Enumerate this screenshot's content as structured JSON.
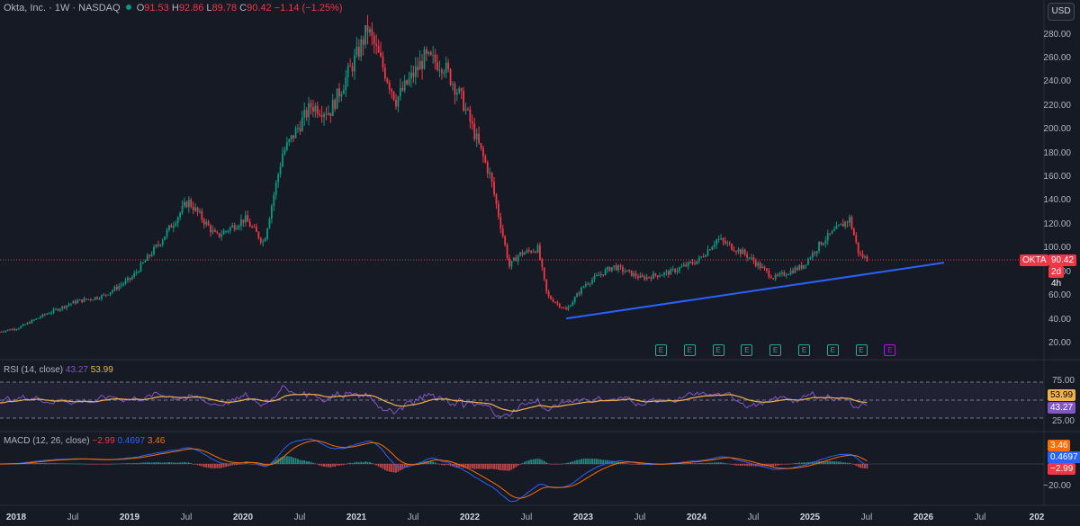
{
  "header": {
    "symbol": "Okta, Inc. · 1W · NASDAQ",
    "o_key": "O",
    "o_val": "91.53",
    "h_key": "H",
    "h_val": "92.86",
    "l_key": "L",
    "l_val": "89.78",
    "c_key": "C",
    "c_val": "90.42",
    "change": "−1.14 (−1.25%)",
    "currency": "USD"
  },
  "price_axis": {
    "labels": [
      "280.00",
      "260.00",
      "240.00",
      "220.00",
      "200.00",
      "180.00",
      "160.00",
      "140.00",
      "120.00",
      "100.00",
      "80.00",
      "60.00",
      "40.00",
      "20.00"
    ],
    "values": [
      280,
      260,
      240,
      220,
      200,
      180,
      160,
      140,
      120,
      100,
      80,
      60,
      40,
      20
    ]
  },
  "last_price": {
    "ticker": "OKTA",
    "price": "90.42",
    "countdown": "2d 4h",
    "value": 90.42
  },
  "rsi": {
    "title": "RSI (14, close)",
    "val1": "43.27",
    "val2": "53.99",
    "levels": [
      "75.00",
      "50.00",
      "25.00"
    ]
  },
  "macd": {
    "title": "MACD (12, 26, close)",
    "hist": "−2.99",
    "macd": "0.4697",
    "signal": "3.46",
    "levels": [
      "0.00",
      "−20.00"
    ]
  },
  "time_axis": [
    {
      "t": "2018",
      "bold": true
    },
    {
      "t": "Jul"
    },
    {
      "t": "2019",
      "bold": true
    },
    {
      "t": "Jul"
    },
    {
      "t": "2020",
      "bold": true
    },
    {
      "t": "Jul"
    },
    {
      "t": "2021",
      "bold": true
    },
    {
      "t": "Jul"
    },
    {
      "t": "2022",
      "bold": true
    },
    {
      "t": "Jul"
    },
    {
      "t": "2023",
      "bold": true
    },
    {
      "t": "Jul"
    },
    {
      "t": "2024",
      "bold": true
    },
    {
      "t": "Jul"
    },
    {
      "t": "2025",
      "bold": true
    },
    {
      "t": "Jul"
    },
    {
      "t": "2026",
      "bold": true
    },
    {
      "t": "Jul"
    },
    {
      "t": "202",
      "bold": true
    }
  ],
  "earnings_marker": "E",
  "earnings_count": 9,
  "colors": {
    "up": "#089981",
    "down": "#f23645",
    "trendline": "#2962ff",
    "rsi": "#7e57c2",
    "rsi_ma": "#f0b34a",
    "macd": "#2962ff",
    "signal": "#ff6d00"
  },
  "chart_data": {
    "type": "candlestick",
    "timeframe": "1W",
    "ylim": [
      20,
      290
    ],
    "close_path": [
      {
        "date": "2017-11",
        "close": 30
      },
      {
        "date": "2018-01",
        "close": 33
      },
      {
        "date": "2018-04",
        "close": 45
      },
      {
        "date": "2018-07",
        "close": 55
      },
      {
        "date": "2018-10",
        "close": 60
      },
      {
        "date": "2019-01",
        "close": 75
      },
      {
        "date": "2019-04",
        "close": 105
      },
      {
        "date": "2019-07",
        "close": 140
      },
      {
        "date": "2019-10",
        "close": 110
      },
      {
        "date": "2020-01",
        "close": 125
      },
      {
        "date": "2020-03",
        "close": 105
      },
      {
        "date": "2020-05",
        "close": 180
      },
      {
        "date": "2020-08",
        "close": 220
      },
      {
        "date": "2020-10",
        "close": 215
      },
      {
        "date": "2021-01",
        "close": 265
      },
      {
        "date": "2021-02",
        "close": 285
      },
      {
        "date": "2021-05",
        "close": 225
      },
      {
        "date": "2021-08",
        "close": 260
      },
      {
        "date": "2021-10",
        "close": 255
      },
      {
        "date": "2021-12",
        "close": 225
      },
      {
        "date": "2022-03",
        "close": 160
      },
      {
        "date": "2022-05",
        "close": 85
      },
      {
        "date": "2022-06",
        "close": 95
      },
      {
        "date": "2022-08",
        "close": 100
      },
      {
        "date": "2022-09",
        "close": 60
      },
      {
        "date": "2022-11",
        "close": 48
      },
      {
        "date": "2023-01",
        "close": 70
      },
      {
        "date": "2023-04",
        "close": 85
      },
      {
        "date": "2023-07",
        "close": 75
      },
      {
        "date": "2023-10",
        "close": 80
      },
      {
        "date": "2024-01",
        "close": 90
      },
      {
        "date": "2024-03",
        "close": 108
      },
      {
        "date": "2024-06",
        "close": 95
      },
      {
        "date": "2024-09",
        "close": 75
      },
      {
        "date": "2024-12",
        "close": 85
      },
      {
        "date": "2025-02",
        "close": 105
      },
      {
        "date": "2025-05",
        "close": 125
      },
      {
        "date": "2025-06",
        "close": 95
      },
      {
        "date": "2025-07",
        "close": 90.42
      }
    ],
    "trendline": [
      {
        "date": "2022-11",
        "price": 41
      },
      {
        "date": "2026-03",
        "price": 88
      }
    ]
  }
}
